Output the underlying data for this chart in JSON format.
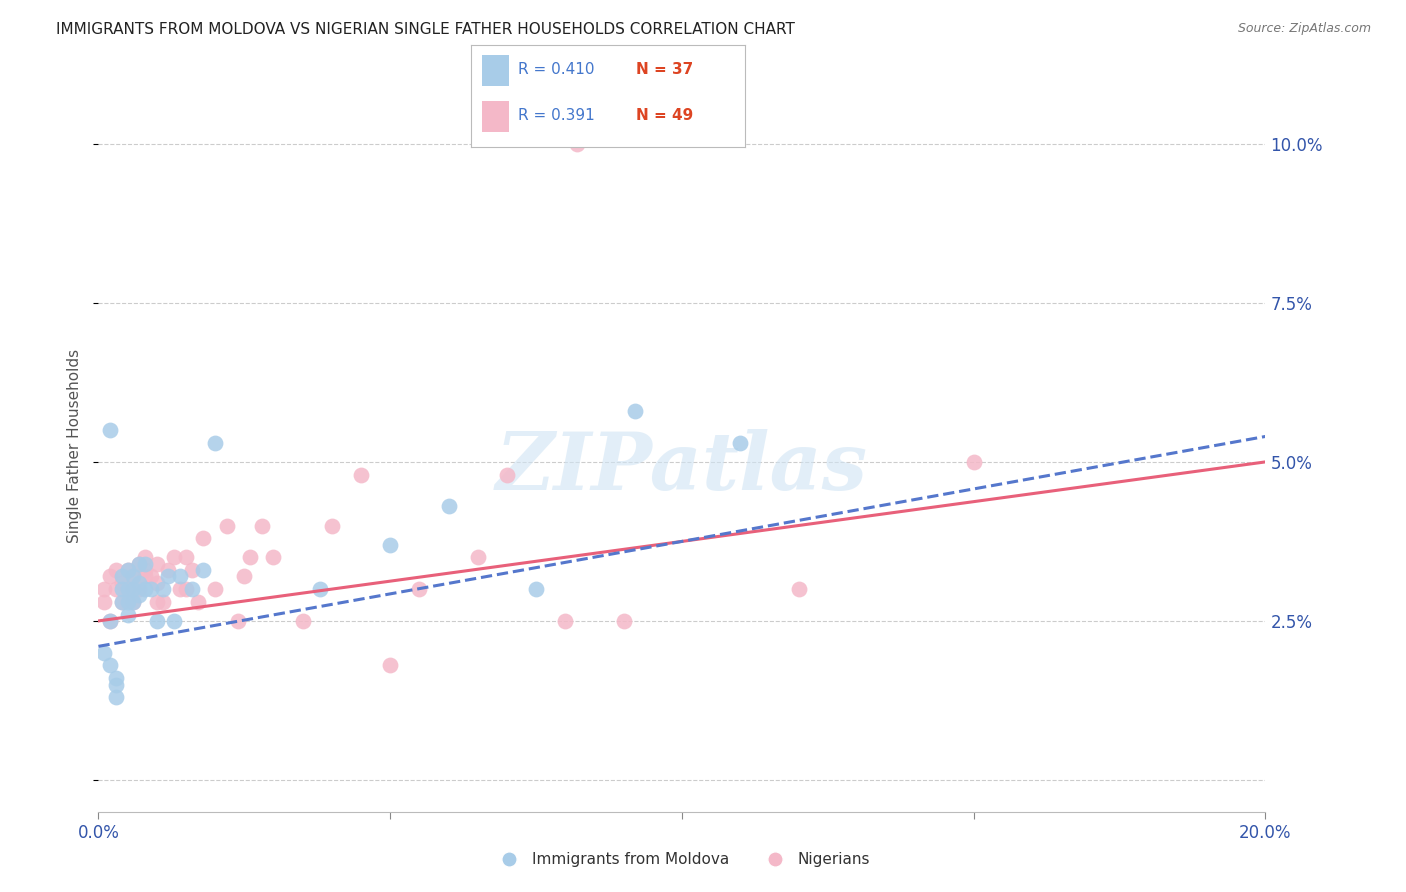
{
  "title": "IMMIGRANTS FROM MOLDOVA VS NIGERIAN SINGLE FATHER HOUSEHOLDS CORRELATION CHART",
  "source": "Source: ZipAtlas.com",
  "ylabel": "Single Father Households",
  "xlim": [
    0.0,
    0.2
  ],
  "ylim": [
    -0.005,
    0.11
  ],
  "yticks": [
    0.0,
    0.025,
    0.05,
    0.075,
    0.1
  ],
  "xticks": [
    0.0,
    0.05,
    0.1,
    0.15,
    0.2
  ],
  "ytick_labels": [
    "",
    "2.5%",
    "5.0%",
    "7.5%",
    "10.0%"
  ],
  "blue_color": "#a8cce8",
  "pink_color": "#f4b8c8",
  "blue_line_color": "#5577cc",
  "pink_line_color": "#e8607a",
  "legend_r_blue": "R = 0.410",
  "legend_n_blue": "N = 37",
  "legend_r_blue_color": "#4477cc",
  "legend_n_blue_color": "#dd4422",
  "legend_r_pink": "R = 0.391",
  "legend_n_pink": "N = 49",
  "legend_r_pink_color": "#4477cc",
  "legend_n_pink_color": "#dd4422",
  "watermark": "ZIPatlas",
  "blue_scatter_x": [
    0.001,
    0.002,
    0.002,
    0.003,
    0.003,
    0.003,
    0.004,
    0.004,
    0.004,
    0.005,
    0.005,
    0.005,
    0.005,
    0.006,
    0.006,
    0.006,
    0.007,
    0.007,
    0.007,
    0.008,
    0.008,
    0.009,
    0.01,
    0.011,
    0.012,
    0.013,
    0.014,
    0.016,
    0.018,
    0.02,
    0.038,
    0.05,
    0.06,
    0.075,
    0.092,
    0.11,
    0.002
  ],
  "blue_scatter_y": [
    0.02,
    0.018,
    0.025,
    0.013,
    0.015,
    0.016,
    0.028,
    0.03,
    0.032,
    0.026,
    0.028,
    0.03,
    0.033,
    0.028,
    0.03,
    0.032,
    0.029,
    0.031,
    0.034,
    0.03,
    0.034,
    0.03,
    0.025,
    0.03,
    0.032,
    0.025,
    0.032,
    0.03,
    0.033,
    0.053,
    0.03,
    0.037,
    0.043,
    0.03,
    0.058,
    0.053,
    0.055
  ],
  "pink_scatter_x": [
    0.001,
    0.001,
    0.002,
    0.002,
    0.003,
    0.003,
    0.004,
    0.004,
    0.005,
    0.005,
    0.006,
    0.006,
    0.007,
    0.007,
    0.008,
    0.008,
    0.008,
    0.009,
    0.01,
    0.01,
    0.01,
    0.011,
    0.012,
    0.013,
    0.014,
    0.015,
    0.015,
    0.016,
    0.017,
    0.018,
    0.02,
    0.022,
    0.024,
    0.025,
    0.026,
    0.028,
    0.03,
    0.035,
    0.04,
    0.045,
    0.05,
    0.055,
    0.065,
    0.07,
    0.08,
    0.09,
    0.12,
    0.15,
    0.082
  ],
  "pink_scatter_y": [
    0.028,
    0.03,
    0.025,
    0.032,
    0.03,
    0.033,
    0.028,
    0.031,
    0.03,
    0.033,
    0.028,
    0.032,
    0.03,
    0.034,
    0.032,
    0.033,
    0.035,
    0.032,
    0.028,
    0.031,
    0.034,
    0.028,
    0.033,
    0.035,
    0.03,
    0.035,
    0.03,
    0.033,
    0.028,
    0.038,
    0.03,
    0.04,
    0.025,
    0.032,
    0.035,
    0.04,
    0.035,
    0.025,
    0.04,
    0.048,
    0.018,
    0.03,
    0.035,
    0.048,
    0.025,
    0.025,
    0.03,
    0.05,
    0.1
  ],
  "blue_trend_x": [
    0.0,
    0.2
  ],
  "blue_trend_y": [
    0.021,
    0.054
  ],
  "pink_trend_x": [
    0.0,
    0.2
  ],
  "pink_trend_y": [
    0.025,
    0.05
  ],
  "background_color": "#ffffff",
  "grid_color": "#cccccc",
  "title_color": "#222222",
  "axis_label_color": "#3355aa",
  "ylabel_color": "#555555"
}
